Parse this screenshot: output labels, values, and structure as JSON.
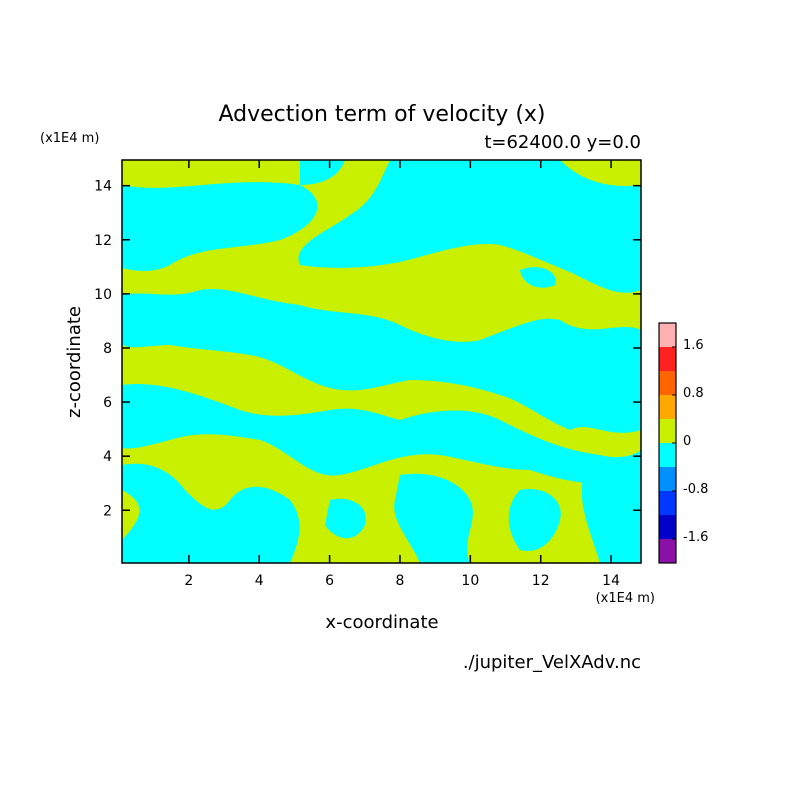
{
  "chart_data": {
    "type": "contour",
    "title": "Advection term of velocity (x)",
    "subtitle": "t=62400.0 y=0.0",
    "x_label": "x-coordinate",
    "y_label": "z-coordinate",
    "x_unit": "(x1E4 m)",
    "y_unit": "(x1E4 m)",
    "footer": "./jupiter_VelXAdv.nc",
    "xlim": [
      0.1,
      14.85
    ],
    "ylim": [
      0.05,
      14.95
    ],
    "xticks": [
      2,
      4,
      6,
      8,
      10,
      12,
      14
    ],
    "yticks": [
      2,
      4,
      6,
      8,
      10,
      12,
      14
    ],
    "levels": [
      -2.0,
      -1.6,
      -1.2,
      -0.8,
      -0.4,
      0,
      0.4,
      0.8,
      1.2,
      1.6,
      2.0
    ],
    "colors": [
      "#8a10a8",
      "#0000c8",
      "#0038ff",
      "#0090ff",
      "#00ffff",
      "#c8f000",
      "#ffa800",
      "#ff6400",
      "#ff2020",
      "#ffb0b0"
    ],
    "colorbar_ticks": [
      -1.6,
      -0.8,
      0,
      0.8,
      1.6
    ]
  }
}
